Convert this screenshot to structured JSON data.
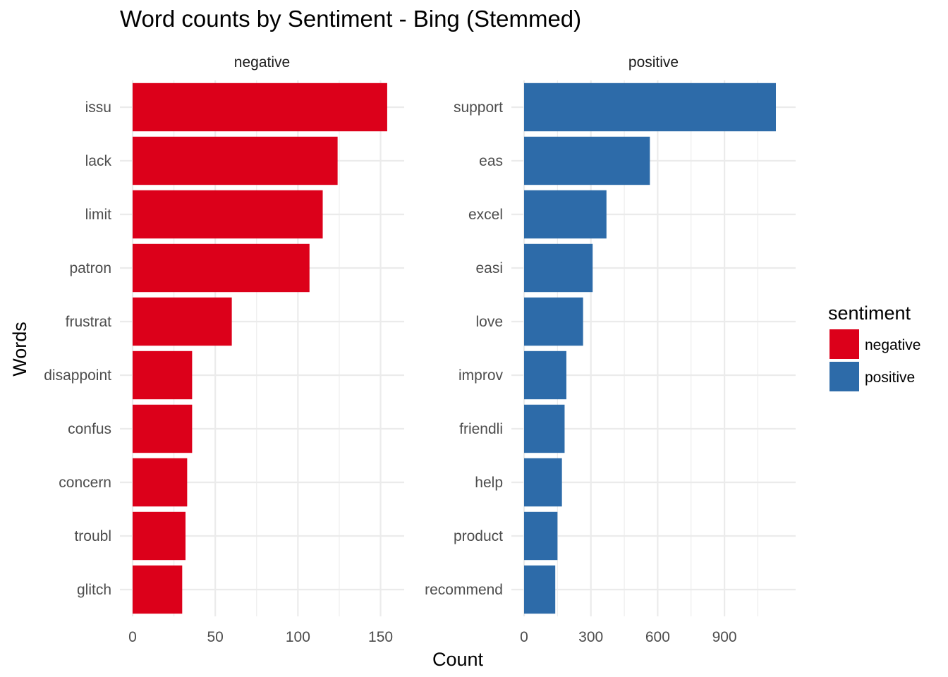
{
  "chart_data": {
    "type": "bar",
    "orientation": "horizontal",
    "title": "Word counts by Sentiment - Bing (Stemmed)",
    "xlabel": "Count",
    "ylabel": "Words",
    "grid": true,
    "legend": {
      "title": "sentiment",
      "placement": "right",
      "items": [
        {
          "label": "negative",
          "color": "#DC001A"
        },
        {
          "label": "positive",
          "color": "#2D6BA9"
        }
      ]
    },
    "facets": [
      {
        "name": "negative",
        "color": "#DC001A",
        "xlim": [
          0,
          160
        ],
        "xticks": [
          0,
          50,
          100,
          150
        ],
        "categories": [
          "issu",
          "lack",
          "limit",
          "patron",
          "frustrat",
          "disappoint",
          "confus",
          "concern",
          "troubl",
          "glitch"
        ],
        "values": [
          154,
          124,
          115,
          107,
          60,
          36,
          36,
          33,
          32,
          30
        ]
      },
      {
        "name": "positive",
        "color": "#2D6BA9",
        "xlim": [
          0,
          1188
        ],
        "xticks": [
          0,
          300,
          600,
          900
        ],
        "categories": [
          "support",
          "eas",
          "excel",
          "easi",
          "love",
          "improv",
          "friendli",
          "help",
          "product",
          "recommend"
        ],
        "values": [
          1131,
          565,
          370,
          308,
          265,
          190,
          182,
          170,
          150,
          140
        ]
      }
    ]
  }
}
